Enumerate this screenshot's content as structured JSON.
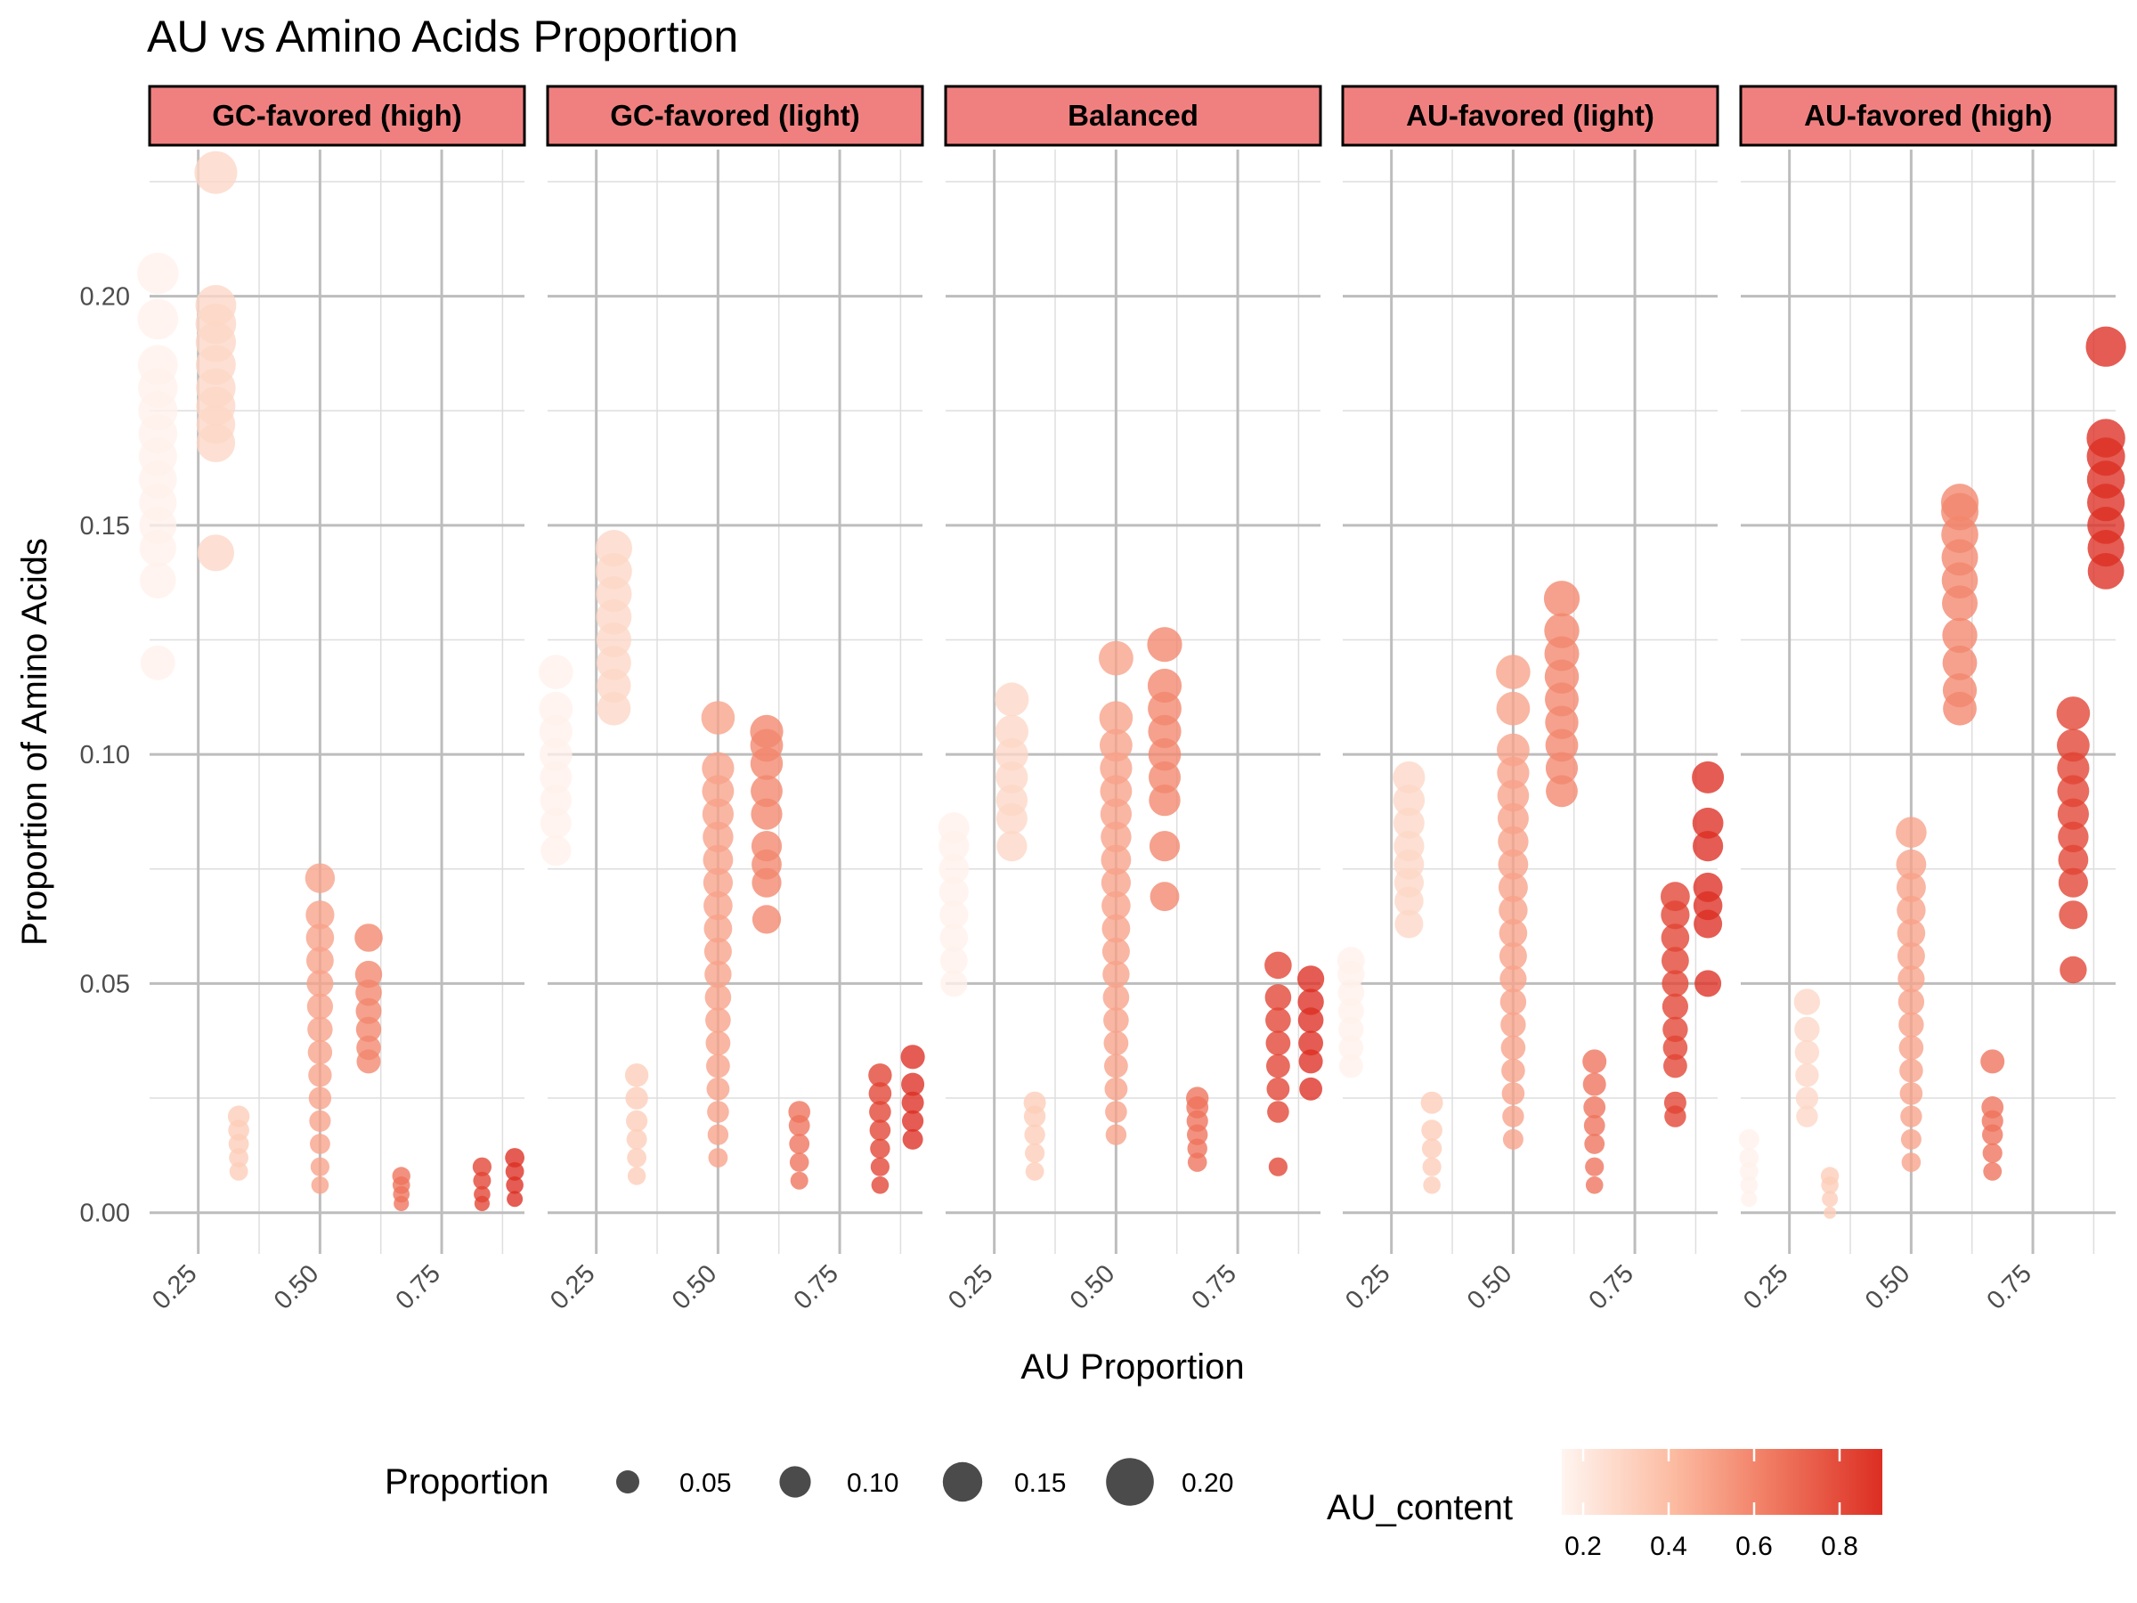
{
  "chart_data": {
    "type": "scatter",
    "title": "AU vs Amino Acids Proportion",
    "xlabel": "AU Proportion",
    "ylabel": "Proportion of Amino Acids",
    "facets": [
      "GC-favored (high)",
      "GC-favored (light)",
      "Balanced",
      "AU-favored (light)",
      "AU-favored (high)"
    ],
    "xlim": [
      0.15,
      0.92
    ],
    "ylim": [
      -0.009,
      0.232
    ],
    "x_ticks": [
      0.25,
      0.5,
      0.75
    ],
    "x_tick_labels": [
      "0.25",
      "0.50",
      "0.75"
    ],
    "y_ticks": [
      0.0,
      0.05,
      0.1,
      0.15,
      0.2
    ],
    "y_tick_labels": [
      "0.00",
      "0.05",
      "0.10",
      "0.15",
      "0.20"
    ],
    "grid": true,
    "legend_position": "bottom",
    "size_legend": {
      "title": "Proportion",
      "breaks": [
        0.05,
        0.1,
        0.15,
        0.2
      ],
      "labels": [
        "0.05",
        "0.10",
        "0.15",
        "0.20"
      ]
    },
    "color_legend": {
      "title": "AU_content",
      "breaks": [
        0.2,
        0.4,
        0.6,
        0.8
      ],
      "labels": [
        "0.2",
        "0.4",
        "0.6",
        "0.8"
      ],
      "low": "#fff5f0",
      "high": "#dc2e22",
      "range": [
        0.15,
        0.9
      ]
    },
    "panels": [
      {
        "name": "GC-favored (high)",
        "columns": [
          {
            "x": 0.167,
            "y": [
              0.12,
              0.138,
              0.145,
              0.15,
              0.155,
              0.16,
              0.165,
              0.17,
              0.175,
              0.18,
              0.185,
              0.195,
              0.205
            ]
          },
          {
            "x": 0.286,
            "y": [
              0.144,
              0.168,
              0.172,
              0.176,
              0.18,
              0.185,
              0.19,
              0.194,
              0.198,
              0.227
            ]
          },
          {
            "x": 0.333,
            "y": [
              0.009,
              0.012,
              0.015,
              0.018,
              0.021
            ]
          },
          {
            "x": 0.5,
            "y": [
              0.006,
              0.01,
              0.015,
              0.02,
              0.025,
              0.03,
              0.035,
              0.04,
              0.045,
              0.05,
              0.055,
              0.06,
              0.065,
              0.073
            ]
          },
          {
            "x": 0.6,
            "y": [
              0.033,
              0.036,
              0.04,
              0.044,
              0.048,
              0.052,
              0.06
            ]
          },
          {
            "x": 0.667,
            "y": [
              0.002,
              0.004,
              0.006,
              0.008
            ]
          },
          {
            "x": 0.833,
            "y": [
              0.002,
              0.004,
              0.007,
              0.01
            ]
          },
          {
            "x": 0.9,
            "y": [
              0.003,
              0.006,
              0.009,
              0.012
            ]
          }
        ]
      },
      {
        "name": "GC-favored (light)",
        "columns": [
          {
            "x": 0.167,
            "y": [
              0.079,
              0.085,
              0.09,
              0.095,
              0.1,
              0.105,
              0.11,
              0.118
            ]
          },
          {
            "x": 0.286,
            "y": [
              0.11,
              0.115,
              0.12,
              0.125,
              0.13,
              0.135,
              0.14,
              0.145
            ]
          },
          {
            "x": 0.333,
            "y": [
              0.008,
              0.012,
              0.016,
              0.02,
              0.025,
              0.03
            ]
          },
          {
            "x": 0.5,
            "y": [
              0.012,
              0.017,
              0.022,
              0.027,
              0.032,
              0.037,
              0.042,
              0.047,
              0.052,
              0.057,
              0.062,
              0.067,
              0.072,
              0.077,
              0.082,
              0.087,
              0.092,
              0.097,
              0.108
            ]
          },
          {
            "x": 0.6,
            "y": [
              0.064,
              0.072,
              0.076,
              0.08,
              0.087,
              0.092,
              0.098,
              0.102,
              0.105
            ]
          },
          {
            "x": 0.667,
            "y": [
              0.007,
              0.011,
              0.015,
              0.019,
              0.022
            ]
          },
          {
            "x": 0.833,
            "y": [
              0.006,
              0.01,
              0.014,
              0.018,
              0.022,
              0.026,
              0.03
            ]
          },
          {
            "x": 0.9,
            "y": [
              0.016,
              0.02,
              0.024,
              0.028,
              0.034
            ]
          }
        ]
      },
      {
        "name": "Balanced",
        "columns": [
          {
            "x": 0.167,
            "y": [
              0.05,
              0.055,
              0.06,
              0.065,
              0.07,
              0.075,
              0.08,
              0.084
            ]
          },
          {
            "x": 0.286,
            "y": [
              0.08,
              0.086,
              0.09,
              0.095,
              0.1,
              0.105,
              0.112
            ]
          },
          {
            "x": 0.333,
            "y": [
              0.009,
              0.013,
              0.017,
              0.021,
              0.024
            ]
          },
          {
            "x": 0.5,
            "y": [
              0.017,
              0.022,
              0.027,
              0.032,
              0.037,
              0.042,
              0.047,
              0.052,
              0.057,
              0.062,
              0.067,
              0.072,
              0.077,
              0.082,
              0.087,
              0.092,
              0.097,
              0.102,
              0.108,
              0.121
            ]
          },
          {
            "x": 0.6,
            "y": [
              0.069,
              0.08,
              0.09,
              0.095,
              0.1,
              0.105,
              0.11,
              0.115,
              0.124
            ]
          },
          {
            "x": 0.667,
            "y": [
              0.011,
              0.014,
              0.017,
              0.02,
              0.023,
              0.025
            ]
          },
          {
            "x": 0.833,
            "y": [
              0.01,
              0.022,
              0.027,
              0.032,
              0.037,
              0.042,
              0.047,
              0.054
            ]
          },
          {
            "x": 0.9,
            "y": [
              0.027,
              0.033,
              0.037,
              0.042,
              0.046,
              0.051
            ]
          }
        ]
      },
      {
        "name": "AU-favored (light)",
        "columns": [
          {
            "x": 0.167,
            "y": [
              0.032,
              0.036,
              0.04,
              0.044,
              0.048,
              0.052,
              0.055
            ]
          },
          {
            "x": 0.286,
            "y": [
              0.063,
              0.068,
              0.072,
              0.076,
              0.08,
              0.085,
              0.09,
              0.095
            ]
          },
          {
            "x": 0.333,
            "y": [
              0.006,
              0.01,
              0.014,
              0.018,
              0.024
            ]
          },
          {
            "x": 0.5,
            "y": [
              0.016,
              0.021,
              0.026,
              0.031,
              0.036,
              0.041,
              0.046,
              0.051,
              0.056,
              0.061,
              0.066,
              0.071,
              0.076,
              0.081,
              0.086,
              0.091,
              0.096,
              0.101,
              0.11,
              0.118
            ]
          },
          {
            "x": 0.6,
            "y": [
              0.092,
              0.097,
              0.102,
              0.107,
              0.112,
              0.117,
              0.122,
              0.127,
              0.134
            ]
          },
          {
            "x": 0.667,
            "y": [
              0.006,
              0.01,
              0.015,
              0.019,
              0.023,
              0.028,
              0.033
            ]
          },
          {
            "x": 0.833,
            "y": [
              0.021,
              0.024,
              0.032,
              0.036,
              0.04,
              0.045,
              0.05,
              0.055,
              0.06,
              0.065,
              0.069
            ]
          },
          {
            "x": 0.9,
            "y": [
              0.05,
              0.063,
              0.067,
              0.071,
              0.08,
              0.085,
              0.095
            ]
          }
        ]
      },
      {
        "name": "AU-favored (high)",
        "columns": [
          {
            "x": 0.167,
            "y": [
              0.003,
              0.006,
              0.009,
              0.012,
              0.016
            ]
          },
          {
            "x": 0.286,
            "y": [
              0.021,
              0.025,
              0.03,
              0.035,
              0.04,
              0.046
            ]
          },
          {
            "x": 0.333,
            "y": [
              0.0,
              0.003,
              0.006,
              0.008
            ]
          },
          {
            "x": 0.5,
            "y": [
              0.011,
              0.016,
              0.021,
              0.026,
              0.031,
              0.036,
              0.041,
              0.046,
              0.051,
              0.056,
              0.061,
              0.066,
              0.071,
              0.076,
              0.083
            ]
          },
          {
            "x": 0.6,
            "y": [
              0.11,
              0.114,
              0.12,
              0.126,
              0.133,
              0.138,
              0.143,
              0.148,
              0.153,
              0.155
            ]
          },
          {
            "x": 0.667,
            "y": [
              0.009,
              0.013,
              0.017,
              0.02,
              0.023,
              0.033
            ]
          },
          {
            "x": 0.833,
            "y": [
              0.053,
              0.065,
              0.072,
              0.077,
              0.082,
              0.087,
              0.092,
              0.097,
              0.102,
              0.109
            ]
          },
          {
            "x": 0.9,
            "y": [
              0.14,
              0.145,
              0.15,
              0.155,
              0.16,
              0.165,
              0.169,
              0.189
            ]
          }
        ]
      }
    ]
  }
}
